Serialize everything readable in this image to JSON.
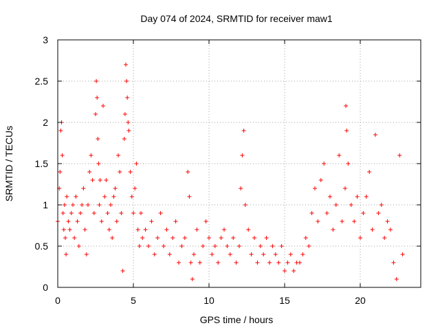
{
  "chart_data": {
    "type": "scatter",
    "title": "Day 074 of 2024, SRMTID for receiver maw1",
    "xlabel": "GPS time / hours",
    "ylabel": "SRMTID / TECUs",
    "xlim": [
      0,
      24
    ],
    "ylim": [
      0,
      3
    ],
    "xticks": [
      0,
      5,
      10,
      15,
      20
    ],
    "yticks": [
      0,
      0.5,
      1,
      1.5,
      2,
      2.5,
      3
    ],
    "xtick_labels": [
      "0",
      "5",
      "10",
      "15",
      "20"
    ],
    "ytick_labels": [
      "0",
      "0.5",
      "1",
      "1.5",
      "2",
      "2.5",
      "3"
    ],
    "grid": true,
    "marker": "+",
    "color": "#ff0000",
    "series": [
      {
        "name": "maw1",
        "x": [
          0.0,
          0.1,
          0.15,
          0.2,
          0.25,
          0.3,
          0.35,
          0.4,
          0.45,
          0.5,
          0.55,
          0.6,
          0.7,
          0.8,
          0.9,
          1.0,
          1.1,
          1.2,
          1.3,
          1.4,
          1.5,
          1.6,
          1.7,
          1.8,
          1.9,
          2.0,
          2.1,
          2.2,
          2.3,
          2.4,
          2.5,
          2.55,
          2.6,
          2.65,
          2.7,
          2.75,
          2.8,
          2.9,
          3.0,
          3.1,
          3.2,
          3.3,
          3.4,
          3.5,
          3.6,
          3.7,
          3.8,
          3.9,
          4.0,
          4.1,
          4.2,
          4.3,
          4.4,
          4.45,
          4.5,
          4.55,
          4.6,
          4.65,
          4.7,
          4.8,
          4.9,
          5.0,
          5.1,
          5.2,
          5.3,
          5.4,
          5.5,
          5.6,
          5.8,
          6.0,
          6.2,
          6.4,
          6.6,
          6.8,
          7.0,
          7.2,
          7.4,
          7.6,
          7.8,
          8.0,
          8.2,
          8.4,
          8.6,
          8.7,
          8.8,
          8.9,
          9.0,
          9.2,
          9.4,
          9.6,
          9.8,
          10.0,
          10.2,
          10.4,
          10.6,
          10.8,
          11.0,
          11.2,
          11.4,
          11.6,
          11.8,
          12.0,
          12.1,
          12.2,
          12.3,
          12.4,
          12.6,
          12.8,
          13.0,
          13.2,
          13.4,
          13.6,
          13.8,
          14.0,
          14.2,
          14.4,
          14.6,
          14.8,
          15.0,
          15.2,
          15.4,
          15.6,
          15.8,
          16.0,
          16.2,
          16.4,
          16.6,
          16.8,
          17.0,
          17.2,
          17.4,
          17.6,
          17.8,
          18.0,
          18.2,
          18.4,
          18.6,
          18.8,
          19.0,
          19.05,
          19.1,
          19.2,
          19.4,
          19.6,
          19.8,
          20.0,
          20.2,
          20.4,
          20.6,
          20.8,
          21.0,
          21.2,
          21.4,
          21.6,
          21.8,
          22.0,
          22.2,
          22.4,
          22.6,
          22.8
        ],
        "y": [
          0.8,
          1.2,
          1.4,
          1.9,
          2.0,
          1.6,
          0.9,
          0.7,
          1.0,
          0.6,
          0.4,
          1.1,
          0.8,
          0.7,
          0.9,
          1.0,
          0.6,
          1.1,
          0.8,
          0.5,
          0.9,
          1.0,
          1.2,
          0.7,
          0.4,
          1.0,
          1.4,
          1.6,
          1.3,
          0.9,
          2.1,
          2.5,
          2.3,
          1.8,
          1.5,
          1.0,
          1.3,
          0.8,
          2.2,
          1.1,
          1.3,
          0.9,
          0.7,
          1.0,
          0.6,
          1.1,
          1.2,
          0.8,
          1.6,
          1.4,
          0.9,
          0.2,
          1.8,
          2.1,
          2.7,
          2.5,
          2.3,
          2.0,
          1.9,
          1.4,
          1.1,
          0.9,
          1.2,
          1.5,
          0.7,
          0.5,
          0.9,
          0.6,
          0.7,
          0.5,
          0.8,
          0.4,
          0.6,
          0.9,
          0.5,
          0.7,
          0.4,
          0.6,
          0.8,
          0.3,
          0.5,
          0.6,
          1.4,
          1.1,
          0.3,
          0.1,
          0.4,
          0.7,
          0.3,
          0.5,
          0.8,
          0.6,
          0.4,
          0.5,
          0.3,
          0.6,
          0.7,
          0.5,
          0.4,
          0.6,
          0.3,
          0.5,
          1.2,
          1.6,
          1.9,
          1.0,
          0.7,
          0.4,
          0.6,
          0.3,
          0.5,
          0.4,
          0.6,
          0.3,
          0.5,
          0.4,
          0.3,
          0.5,
          0.2,
          0.3,
          0.4,
          0.2,
          0.3,
          0.3,
          0.4,
          0.6,
          0.5,
          0.9,
          1.2,
          0.8,
          1.3,
          1.5,
          0.9,
          1.1,
          0.7,
          1.0,
          1.6,
          0.8,
          1.2,
          2.2,
          1.9,
          1.5,
          1.0,
          0.8,
          1.1,
          0.6,
          0.9,
          1.1,
          1.4,
          0.7,
          1.85,
          0.9,
          1.0,
          0.6,
          0.8,
          0.7,
          0.3,
          0.1,
          1.6,
          0.4
        ]
      }
    ]
  }
}
